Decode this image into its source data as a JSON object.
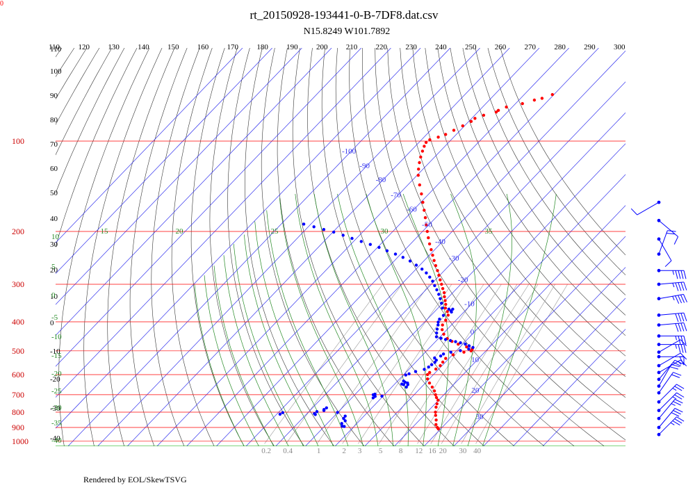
{
  "chart_data": {
    "type": "skew-t log-p",
    "title": "rt_20150928-193441-0-B-7DF8.dat.csv",
    "subtitle": "N15.8249 W101.7892",
    "corner_label": "0",
    "footer": "Rendered by EOL/SkewTSVG",
    "pressure_labels": [
      "100",
      "200",
      "300",
      "400",
      "500",
      "600",
      "700",
      "800",
      "900",
      "1000"
    ],
    "pressure_levels_hPa": [
      100,
      200,
      300,
      400,
      500,
      600,
      700,
      800,
      900,
      1000
    ],
    "potential_temperature_labels_K": [
      "110",
      "120",
      "130",
      "140",
      "150",
      "160",
      "170",
      "180",
      "190",
      "200",
      "210",
      "220",
      "230",
      "240",
      "250",
      "260",
      "270",
      "280",
      "290",
      "300"
    ],
    "isotherm_labels_C": [
      "-100",
      "-90",
      "-80",
      "-70",
      "-60",
      "-50",
      "-40",
      "-30",
      "-20",
      "-10",
      "0",
      "10",
      "20",
      "30"
    ],
    "isotherm_label_positions": [
      {
        "label": "-100",
        "T": -100,
        "p": 110
      },
      {
        "label": "-90",
        "T": -90,
        "p": 123
      },
      {
        "label": "-80",
        "T": -80,
        "p": 137
      },
      {
        "label": "-70",
        "T": -70,
        "p": 154
      },
      {
        "label": "-60",
        "T": -60,
        "p": 172
      },
      {
        "label": "-50",
        "T": -50,
        "p": 193
      },
      {
        "label": "-40",
        "T": -40,
        "p": 220
      },
      {
        "label": "-30",
        "T": -30,
        "p": 250
      },
      {
        "label": "-20",
        "T": -20,
        "p": 295
      },
      {
        "label": "-10",
        "T": -10,
        "p": 355
      },
      {
        "label": "0",
        "T": 0,
        "p": 440
      },
      {
        "label": "10",
        "T": 10,
        "p": 545
      },
      {
        "label": "20",
        "T": 20,
        "p": 690
      },
      {
        "label": "30",
        "T": 30,
        "p": 845
      }
    ],
    "dry_adiabat_left_labels": [
      "110",
      "100",
      "90",
      "80",
      "70",
      "60",
      "50",
      "40",
      "30",
      "20",
      "10",
      "0",
      "-10",
      "-20",
      "-30",
      "-40"
    ],
    "moist_adiabat_labels_C": [
      "15",
      "20",
      "25",
      "30",
      "35"
    ],
    "moist_adiabat_left_labels": [
      "10",
      "5",
      "0",
      "-5",
      "-10",
      "-15",
      "-20",
      "-25",
      "-30",
      "-35",
      "-40"
    ],
    "mixing_ratio_labels": [
      "0.2",
      "0.4",
      "1",
      "2",
      "3",
      "5",
      "8",
      "12",
      "16",
      "20",
      "30",
      "40"
    ],
    "mixing_ratio_values_gkg": [
      0.2,
      0.4,
      1,
      2,
      3,
      5,
      8,
      12,
      16,
      20,
      30,
      40
    ],
    "series": [
      {
        "name": "temperature",
        "color": "#ff0000",
        "points": [
          {
            "p": 910,
            "T": 19.2
          },
          {
            "p": 900,
            "T": 18.4
          },
          {
            "p": 880,
            "T": 17.0
          },
          {
            "p": 850,
            "T": 15.6
          },
          {
            "p": 820,
            "T": 13.9
          },
          {
            "p": 800,
            "T": 12.8
          },
          {
            "p": 770,
            "T": 11.4
          },
          {
            "p": 750,
            "T": 10.6
          },
          {
            "p": 730,
            "T": 9.8
          },
          {
            "p": 715,
            "T": 8.4
          },
          {
            "p": 700,
            "T": 7.2
          },
          {
            "p": 680,
            "T": 5.6
          },
          {
            "p": 660,
            "T": 3.6
          },
          {
            "p": 640,
            "T": 1.4
          },
          {
            "p": 620,
            "T": -0.6
          },
          {
            "p": 600,
            "T": -2.0
          },
          {
            "p": 590,
            "T": -2.0
          },
          {
            "p": 575,
            "T": -1.0
          },
          {
            "p": 560,
            "T": -0.6
          },
          {
            "p": 545,
            "T": -0.9
          },
          {
            "p": 530,
            "T": -1.1
          },
          {
            "p": 515,
            "T": 0.2
          },
          {
            "p": 505,
            "T": 3.0
          },
          {
            "p": 500,
            "T": 5.0
          },
          {
            "p": 493,
            "T": 4.8
          },
          {
            "p": 485,
            "T": 2.2
          },
          {
            "p": 475,
            "T": -1.5
          },
          {
            "p": 465,
            "T": -4.5
          },
          {
            "p": 455,
            "T": -7.0
          },
          {
            "p": 440,
            "T": -9.6
          },
          {
            "p": 425,
            "T": -11.6
          },
          {
            "p": 410,
            "T": -13.0
          },
          {
            "p": 395,
            "T": -13.5
          },
          {
            "p": 380,
            "T": -14.3
          },
          {
            "p": 370,
            "T": -15.7
          },
          {
            "p": 360,
            "T": -17.5
          },
          {
            "p": 350,
            "T": -18.6
          },
          {
            "p": 340,
            "T": -20.0
          },
          {
            "p": 330,
            "T": -21.5
          },
          {
            "p": 320,
            "T": -22.9
          },
          {
            "p": 310,
            "T": -24.7
          },
          {
            "p": 300,
            "T": -26.5
          },
          {
            "p": 290,
            "T": -28.4
          },
          {
            "p": 280,
            "T": -30.3
          },
          {
            "p": 270,
            "T": -32.3
          },
          {
            "p": 260,
            "T": -34.5
          },
          {
            "p": 250,
            "T": -36.7
          },
          {
            "p": 240,
            "T": -38.9
          },
          {
            "p": 230,
            "T": -41.2
          },
          {
            "p": 220,
            "T": -43.6
          },
          {
            "p": 210,
            "T": -46.0
          },
          {
            "p": 200,
            "T": -48.4
          },
          {
            "p": 190,
            "T": -50.9
          },
          {
            "p": 180,
            "T": -53.5
          },
          {
            "p": 170,
            "T": -56.3
          },
          {
            "p": 160,
            "T": -59.3
          },
          {
            "p": 150,
            "T": -62.5
          },
          {
            "p": 140,
            "T": -66.0
          },
          {
            "p": 130,
            "T": -69.6
          },
          {
            "p": 124,
            "T": -71.5
          },
          {
            "p": 118,
            "T": -73.3
          },
          {
            "p": 113,
            "T": -74.7
          },
          {
            "p": 108,
            "T": -76.0
          },
          {
            "p": 104,
            "T": -77.0
          },
          {
            "p": 101,
            "T": -77.6
          },
          {
            "p": 99,
            "T": -77.2
          },
          {
            "p": 97,
            "T": -75.2
          },
          {
            "p": 95,
            "T": -73.6
          },
          {
            "p": 92,
            "T": -72.2
          },
          {
            "p": 89,
            "T": -70.6
          },
          {
            "p": 86,
            "T": -69.2
          },
          {
            "p": 84,
            "T": -68.9
          },
          {
            "p": 82,
            "T": -67.0
          },
          {
            "p": 80,
            "T": -63.8
          },
          {
            "p": 79,
            "T": -63.6
          },
          {
            "p": 77,
            "T": -62.0
          },
          {
            "p": 75,
            "T": -57.7
          },
          {
            "p": 73,
            "T": -54.8
          },
          {
            "p": 72,
            "T": -52.8
          },
          {
            "p": 70,
            "T": -50.5
          }
        ]
      },
      {
        "name": "dewpoint",
        "color": "#0000ff",
        "points": [
          {
            "p": 189,
            "T": -92.4
          },
          {
            "p": 193,
            "T": -88.1
          },
          {
            "p": 197,
            "T": -83.9
          },
          {
            "p": 201,
            "T": -79.7
          },
          {
            "p": 206,
            "T": -75.5
          },
          {
            "p": 211,
            "T": -71.5
          },
          {
            "p": 216,
            "T": -67.4
          },
          {
            "p": 221,
            "T": -63.4
          },
          {
            "p": 226,
            "T": -59.5
          },
          {
            "p": 232,
            "T": -55.7
          },
          {
            "p": 238,
            "T": -51.8
          },
          {
            "p": 244,
            "T": -48.2
          },
          {
            "p": 251,
            "T": -44.6
          },
          {
            "p": 259,
            "T": -41.2
          },
          {
            "p": 267,
            "T": -38.0
          },
          {
            "p": 275,
            "T": -35.3
          },
          {
            "p": 284,
            "T": -32.8
          },
          {
            "p": 293,
            "T": -30.5
          },
          {
            "p": 303,
            "T": -28.4
          },
          {
            "p": 313,
            "T": -26.3
          },
          {
            "p": 324,
            "T": -24.2
          },
          {
            "p": 335,
            "T": -22.3
          },
          {
            "p": 347,
            "T": -20.4
          },
          {
            "p": 360,
            "T": -18.5
          },
          {
            "p": 363,
            "T": -16.0
          },
          {
            "p": 363,
            "T": -14.7
          },
          {
            "p": 368,
            "T": -14.7
          },
          {
            "p": 371,
            "T": -14.2
          },
          {
            "p": 381,
            "T": -15.8
          },
          {
            "p": 392,
            "T": -15.9
          },
          {
            "p": 401,
            "T": -15.4
          },
          {
            "p": 410,
            "T": -14.5
          },
          {
            "p": 423,
            "T": -13.5
          },
          {
            "p": 436,
            "T": -12.4
          },
          {
            "p": 449,
            "T": -11.2
          },
          {
            "p": 454,
            "T": -9.2
          },
          {
            "p": 458,
            "T": -7.3
          },
          {
            "p": 462,
            "T": -5.3
          },
          {
            "p": 466,
            "T": -3.2
          },
          {
            "p": 470,
            "T": -1.2
          },
          {
            "p": 475,
            "T": 0.9
          },
          {
            "p": 481,
            "T": 2.7
          },
          {
            "p": 487,
            "T": 4.5
          },
          {
            "p": 493,
            "T": 3.6
          },
          {
            "p": 499,
            "T": 1.3
          },
          {
            "p": 505,
            "T": -1.4
          },
          {
            "p": 512,
            "T": -3.3
          },
          {
            "p": 520,
            "T": -3.6
          },
          {
            "p": 528,
            "T": -5.0
          },
          {
            "p": 537,
            "T": -3.7
          },
          {
            "p": 546,
            "T": -3.5
          },
          {
            "p": 556,
            "T": -3.8
          },
          {
            "p": 566,
            "T": -4.1
          },
          {
            "p": 576,
            "T": -4.8
          },
          {
            "p": 586,
            "T": -7.0
          },
          {
            "p": 596,
            "T": -8.5
          },
          {
            "p": 602,
            "T": -9.2
          },
          {
            "p": 630,
            "T": -8.0
          },
          {
            "p": 636,
            "T": -7.1
          },
          {
            "p": 640,
            "T": -6.0
          },
          {
            "p": 645,
            "T": -7.6
          },
          {
            "p": 648,
            "T": -6.8
          },
          {
            "p": 648,
            "T": -5.4
          },
          {
            "p": 660,
            "T": -5.1
          },
          {
            "p": 697,
            "T": -13.4
          },
          {
            "p": 700,
            "T": -13.8
          },
          {
            "p": 709,
            "T": -12.6
          },
          {
            "p": 717,
            "T": -12.8
          },
          {
            "p": 708,
            "T": -10.4
          },
          {
            "p": 774,
            "T": -25.3
          },
          {
            "p": 784,
            "T": -25.6
          },
          {
            "p": 797,
            "T": -27.3
          },
          {
            "p": 809,
            "T": -27.5
          },
          {
            "p": 815,
            "T": -26.9
          },
          {
            "p": 790,
            "T": -25.3
          },
          {
            "p": 802,
            "T": -20.1
          },
          {
            "p": 825,
            "T": -16.3
          },
          {
            "p": 840,
            "T": -16.1
          },
          {
            "p": 855,
            "T": -14.8
          },
          {
            "p": 873,
            "T": -15.1
          },
          {
            "p": 891,
            "T": -14.1
          },
          {
            "p": 893,
            "T": -13.3
          },
          {
            "p": 803,
            "T": -38.5
          },
          {
            "p": 813,
            "T": -38.9
          }
        ]
      }
    ],
    "wind_barbs": [
      {
        "p": 160,
        "direction_deg": 240,
        "speed_kt": 10
      },
      {
        "p": 184,
        "direction_deg": 130,
        "speed_kt": 10
      },
      {
        "p": 212,
        "direction_deg": 150,
        "speed_kt": 10
      },
      {
        "p": 238,
        "direction_deg": 20,
        "speed_kt": 20
      },
      {
        "p": 270,
        "direction_deg": 90,
        "speed_kt": 45
      },
      {
        "p": 300,
        "direction_deg": 85,
        "speed_kt": 45
      },
      {
        "p": 335,
        "direction_deg": 80,
        "speed_kt": 45
      },
      {
        "p": 380,
        "direction_deg": 85,
        "speed_kt": 40
      },
      {
        "p": 410,
        "direction_deg": 85,
        "speed_kt": 40
      },
      {
        "p": 446,
        "direction_deg": 90,
        "speed_kt": 35
      },
      {
        "p": 476,
        "direction_deg": 90,
        "speed_kt": 35
      },
      {
        "p": 505,
        "direction_deg": 60,
        "speed_kt": 10
      },
      {
        "p": 523,
        "direction_deg": 90,
        "speed_kt": 50
      },
      {
        "p": 560,
        "direction_deg": 60,
        "speed_kt": 10
      },
      {
        "p": 590,
        "direction_deg": 60,
        "speed_kt": 15
      },
      {
        "p": 622,
        "direction_deg": 40,
        "speed_kt": 20
      },
      {
        "p": 655,
        "direction_deg": 30,
        "speed_kt": 20
      },
      {
        "p": 690,
        "direction_deg": 35,
        "speed_kt": 20
      },
      {
        "p": 740,
        "direction_deg": 45,
        "speed_kt": 25
      },
      {
        "p": 790,
        "direction_deg": 45,
        "speed_kt": 25
      },
      {
        "p": 840,
        "direction_deg": 40,
        "speed_kt": 25
      },
      {
        "p": 900,
        "direction_deg": 40,
        "speed_kt": 30
      },
      {
        "p": 950,
        "direction_deg": 45,
        "speed_kt": 35
      }
    ],
    "colors": {
      "isobar": "#ff0000",
      "isotherm": "#3333ee",
      "dry_adiabat": "#333333",
      "moist_adiabat": "#228822",
      "mixing_ratio": "#999999",
      "title": "#0000cc",
      "pressure_label": "#cc0000",
      "wind_barb": "#0000ff"
    }
  }
}
